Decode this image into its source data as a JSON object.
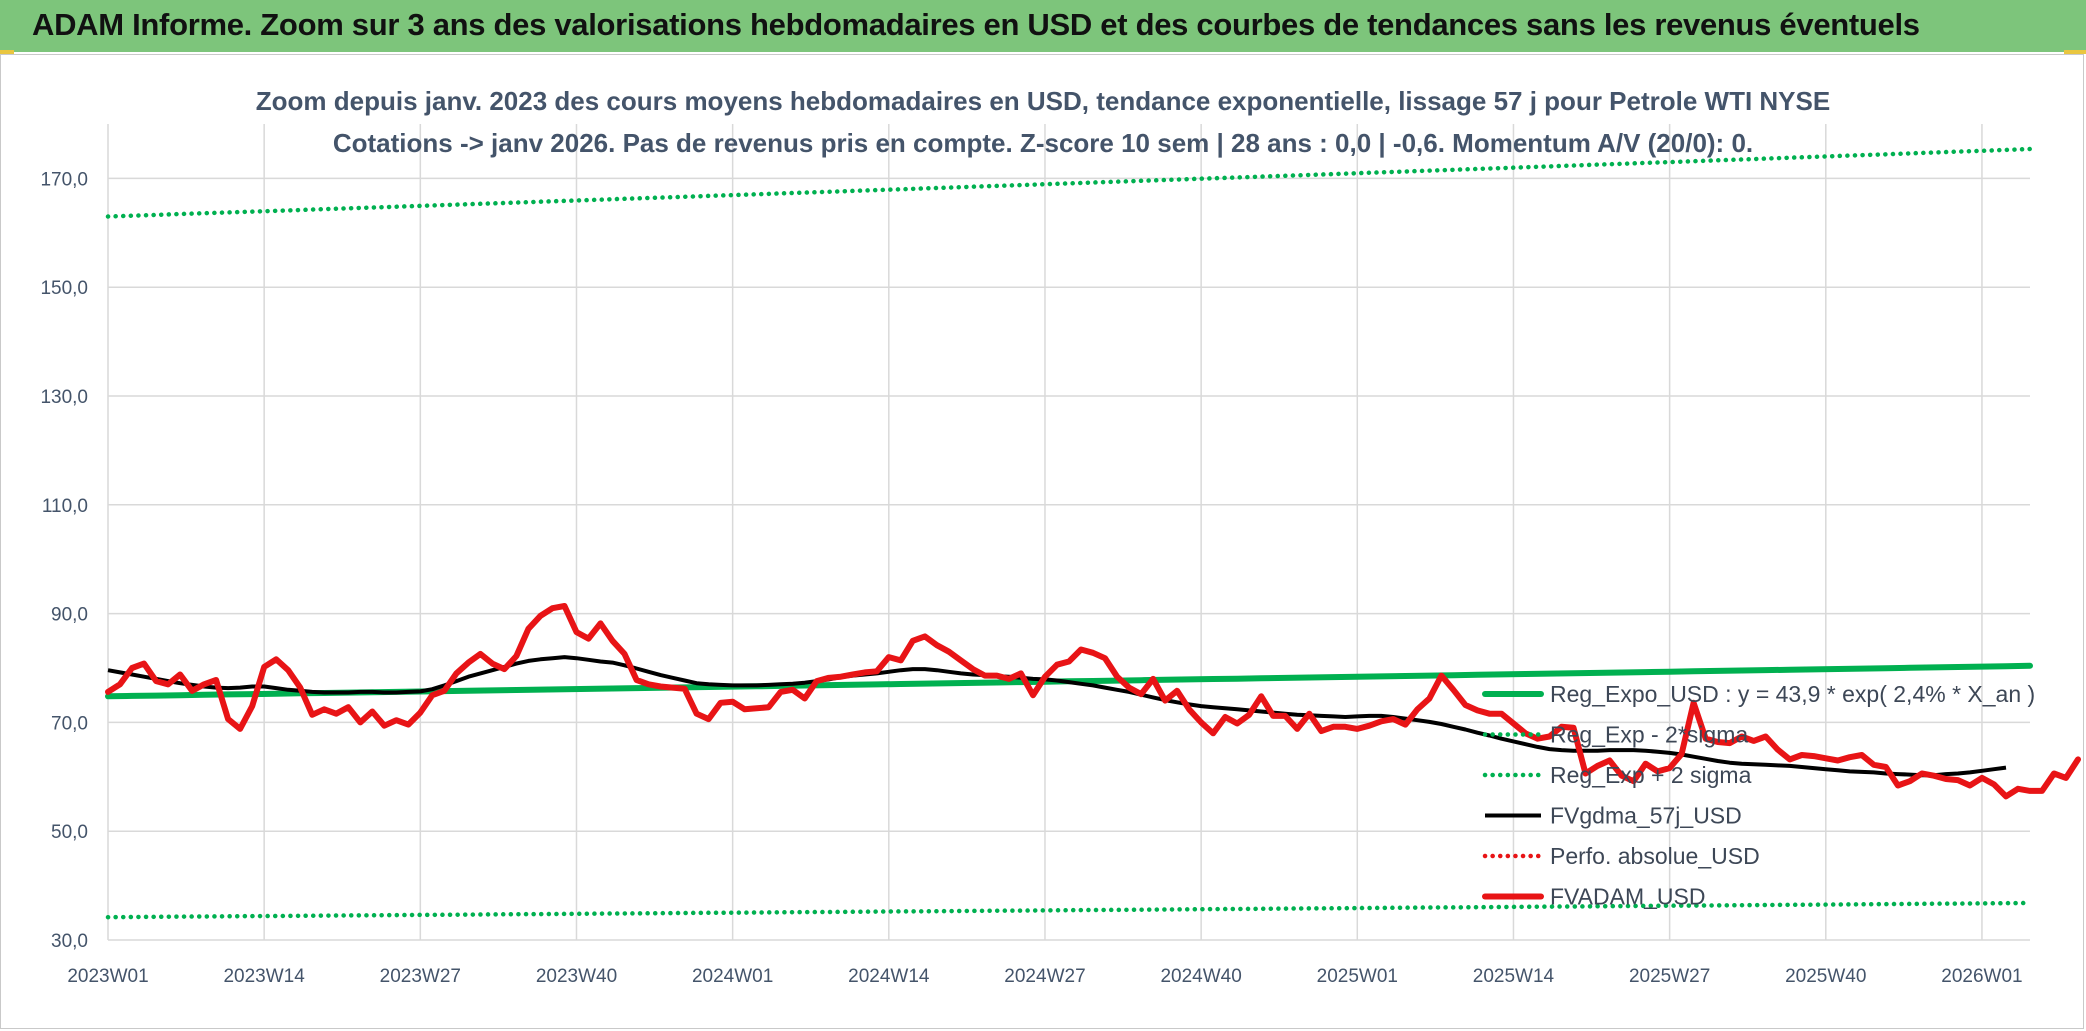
{
  "banner": {
    "title": "ADAM Informe. Zoom sur 3 ans des valorisations hebdomadaires en USD et des courbes de tendances sans les revenus éventuels"
  },
  "colors": {
    "banner": "#7dc57b",
    "green": "#00b050",
    "black": "#000000",
    "red": "#e81416",
    "grid": "#d9d9d9",
    "axis_text": "#44546a"
  },
  "chart_data": {
    "type": "line",
    "title": "Zoom depuis janv. 2023 des cours moyens hebdomadaires en USD, tendance exponentielle, lissage 57 j pour Petrole WTI NYSE",
    "subtitle": "Cotations -> janv 2026. Pas de revenus pris en compte. Z-score 10 sem | 28 ans : 0,0 | -0,6. Momentum A/V (20/0): 0.",
    "xlabel": "",
    "ylabel": "",
    "ylim": [
      30,
      180
    ],
    "yticks": [
      {
        "v": 30,
        "label": "30,0"
      },
      {
        "v": 50,
        "label": "50,0"
      },
      {
        "v": 70,
        "label": "70,0"
      },
      {
        "v": 90,
        "label": "90,0"
      },
      {
        "v": 110,
        "label": "110,0"
      },
      {
        "v": 130,
        "label": "130,0"
      },
      {
        "v": 150,
        "label": "150,0"
      },
      {
        "v": 170,
        "label": "170,0"
      }
    ],
    "xlim": [
      0,
      160
    ],
    "xticks": [
      {
        "i": 0,
        "label": "2023W01"
      },
      {
        "i": 13,
        "label": "2023W14"
      },
      {
        "i": 26,
        "label": "2023W27"
      },
      {
        "i": 39,
        "label": "2023W40"
      },
      {
        "i": 52,
        "label": "2024W01"
      },
      {
        "i": 65,
        "label": "2024W14"
      },
      {
        "i": 78,
        "label": "2024W27"
      },
      {
        "i": 91,
        "label": "2024W40"
      },
      {
        "i": 104,
        "label": "2025W01"
      },
      {
        "i": 117,
        "label": "2025W14"
      },
      {
        "i": 130,
        "label": "2025W27"
      },
      {
        "i": 143,
        "label": "2025W40"
      },
      {
        "i": 156,
        "label": "2026W01"
      }
    ],
    "grid": true,
    "legend_position": "bottom-right",
    "series": [
      {
        "key": "reg",
        "name": "Reg_Expo_USD : y = 43,9 * exp( 2,4% *  X_an )",
        "style": "solid-thick",
        "color": "#00b050",
        "start": 74.8,
        "end": 80.4
      },
      {
        "key": "minus",
        "name": "Reg_Exp - 2*sigma",
        "style": "dotted",
        "color": "#00b050",
        "start": 34.2,
        "end": 36.8
      },
      {
        "key": "plus",
        "name": "Reg_Exp + 2 sigma",
        "style": "dotted",
        "color": "#00b050",
        "start": 163.0,
        "end": 175.4
      },
      {
        "key": "ma",
        "name": "FVgdma_57j_USD",
        "style": "solid",
        "color": "#000000",
        "values": [
          79.6,
          79.2,
          78.8,
          78.4,
          78.0,
          77.6,
          77.2,
          76.9,
          76.6,
          76.4,
          76.3,
          76.4,
          76.6,
          76.6,
          76.3,
          76.0,
          75.8,
          75.6,
          75.5,
          75.5,
          75.5,
          75.6,
          75.6,
          75.5,
          75.5,
          75.6,
          75.7,
          76.1,
          76.8,
          77.6,
          78.4,
          79.0,
          79.6,
          80.2,
          80.8,
          81.3,
          81.6,
          81.8,
          82.0,
          81.8,
          81.5,
          81.2,
          81.0,
          80.5,
          79.9,
          79.3,
          78.7,
          78.2,
          77.7,
          77.2,
          77.0,
          76.9,
          76.8,
          76.8,
          76.8,
          76.9,
          77.0,
          77.1,
          77.3,
          77.6,
          77.9,
          78.3,
          78.6,
          78.8,
          79.0,
          79.3,
          79.6,
          79.8,
          79.8,
          79.6,
          79.3,
          79.0,
          78.8,
          78.7,
          78.5,
          78.4,
          78.2,
          78.0,
          77.9,
          77.7,
          77.4,
          77.1,
          76.8,
          76.4,
          76.0,
          75.6,
          75.1,
          74.6,
          74.1,
          73.7,
          73.3,
          73.0,
          72.8,
          72.6,
          72.4,
          72.2,
          72.0,
          71.8,
          71.6,
          71.4,
          71.3,
          71.2,
          71.1,
          71.0,
          71.1,
          71.2,
          71.2,
          71.0,
          70.7,
          70.4,
          70.1,
          69.7,
          69.2,
          68.7,
          68.1,
          67.6,
          67.0,
          66.5,
          66.0,
          65.5,
          65.1,
          64.9,
          64.8,
          64.8,
          64.8,
          64.9,
          64.9,
          64.9,
          64.8,
          64.6,
          64.4,
          64.1,
          63.7,
          63.3,
          62.9,
          62.6,
          62.4,
          62.3,
          62.2,
          62.1,
          62.0,
          61.8,
          61.6,
          61.4,
          61.2,
          61.0,
          60.9,
          60.8,
          60.6,
          60.5,
          60.4,
          60.3,
          60.3,
          60.5,
          60.6,
          60.8,
          61.1,
          61.4,
          61.7
        ]
      },
      {
        "key": "perf",
        "name": "Perfo. absolue_USD",
        "style": "dotted",
        "color": "#e81416",
        "values": []
      },
      {
        "key": "adam",
        "name": "FVADAM_USD",
        "style": "solid-thick",
        "color": "#e81416",
        "values": [
          75.6,
          77.0,
          80.0,
          80.8,
          77.6,
          77.0,
          78.8,
          75.8,
          77.0,
          77.8,
          70.6,
          68.8,
          73.0,
          80.2,
          81.6,
          79.6,
          76.4,
          71.4,
          72.4,
          71.6,
          72.8,
          70.0,
          72.0,
          69.4,
          70.4,
          69.6,
          71.8,
          75.0,
          75.8,
          79.0,
          81.0,
          82.6,
          80.8,
          79.8,
          82.2,
          87.2,
          89.6,
          91.0,
          91.4,
          86.6,
          85.4,
          88.2,
          85.0,
          82.6,
          77.8,
          77.0,
          76.6,
          76.4,
          76.2,
          71.6,
          70.6,
          73.6,
          73.8,
          72.4,
          72.6,
          72.8,
          75.6,
          76.0,
          74.4,
          77.6,
          78.2,
          78.4,
          78.8,
          79.2,
          79.4,
          82.0,
          81.4,
          85.0,
          85.8,
          84.2,
          83.0,
          81.4,
          79.8,
          78.6,
          78.6,
          78.0,
          79.0,
          75.0,
          78.4,
          80.6,
          81.2,
          83.4,
          82.8,
          81.8,
          78.4,
          76.4,
          75.2,
          78.0,
          74.0,
          75.8,
          72.4,
          70.0,
          68.0,
          71.0,
          69.8,
          71.4,
          74.8,
          71.2,
          71.2,
          68.8,
          71.6,
          68.4,
          69.2,
          69.2,
          68.8,
          69.4,
          70.2,
          70.6,
          69.6,
          72.4,
          74.4,
          78.6,
          76.0,
          73.2,
          72.2,
          71.6,
          71.6,
          69.8,
          68.0,
          67.0,
          67.4,
          69.2,
          69.0,
          60.6,
          62.0,
          63.0,
          60.2,
          59.2,
          62.4,
          61.0,
          61.6,
          64.2,
          73.6,
          67.0,
          66.4,
          66.2,
          67.4,
          66.6,
          67.4,
          65.0,
          63.2,
          64.0,
          63.8,
          63.4,
          63.0,
          63.6,
          64.0,
          62.2,
          61.8,
          58.4,
          59.2,
          60.6,
          60.2,
          59.6,
          59.4,
          58.4,
          59.8,
          58.6,
          56.4,
          57.8,
          57.4,
          57.4,
          60.6,
          59.8,
          63.2
        ]
      }
    ]
  }
}
